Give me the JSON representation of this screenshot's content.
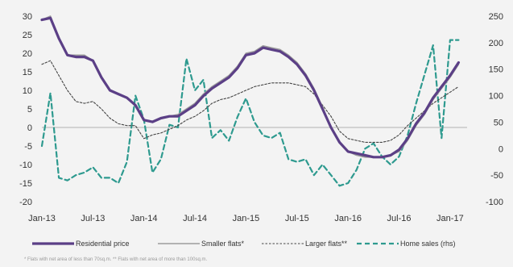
{
  "chart_data": {
    "type": "line",
    "title": "",
    "xlabel": "",
    "ylabel": "",
    "x_tick_labels": [
      "Jan-13",
      "Jul-13",
      "Jan-14",
      "Jul-14",
      "Jan-15",
      "Jul-15",
      "Jan-16",
      "Jul-16",
      "Jan-17"
    ],
    "x_tick_months": [
      0,
      6,
      12,
      18,
      24,
      30,
      36,
      42,
      48
    ],
    "ylim": [
      -20,
      30
    ],
    "y_ticks": [
      -20,
      -15,
      -10,
      -5,
      0,
      5,
      10,
      15,
      20,
      25,
      30
    ],
    "y2lim": [
      -100,
      250
    ],
    "y2_ticks": [
      -100,
      -50,
      0,
      50,
      100,
      150,
      200,
      250
    ],
    "grid": false,
    "legend_position": "bottom",
    "x_month_index": [
      0,
      1,
      2,
      3,
      4,
      5,
      6,
      7,
      8,
      9,
      10,
      11,
      12,
      13,
      14,
      15,
      16,
      17,
      18,
      19,
      20,
      21,
      22,
      23,
      24,
      25,
      26,
      27,
      28,
      29,
      30,
      31,
      32,
      33,
      34,
      35,
      36,
      37,
      38,
      39,
      40,
      41,
      42,
      43,
      44,
      45,
      46,
      47,
      48,
      49
    ],
    "series": [
      {
        "name": "Residential price",
        "axis": "left",
        "color": "#5b3f86",
        "style": "solid-thick",
        "values": [
          29,
          29.5,
          24,
          19.5,
          19,
          19,
          18,
          13.5,
          10,
          9,
          8,
          6,
          2,
          1.5,
          2.5,
          3,
          3,
          4.5,
          6,
          8.5,
          10.5,
          12,
          13.5,
          16,
          19.5,
          20,
          21.5,
          21,
          20.5,
          19,
          17,
          14,
          10,
          5,
          0,
          -4,
          -6.5,
          -7,
          -7.5,
          -8,
          -8,
          -7.5,
          -6,
          -3,
          1,
          4,
          8,
          11,
          14,
          17.5
        ]
      },
      {
        "name": "Smaller flats*",
        "axis": "left",
        "color": "#9c9c9c",
        "style": "solid",
        "values": [
          29,
          30,
          24,
          19.5,
          19.5,
          19.5,
          18,
          13.5,
          10,
          9,
          8,
          6,
          2,
          1.5,
          2.5,
          3,
          3.5,
          5,
          6.5,
          9,
          11,
          12.5,
          14,
          16.5,
          20,
          20.5,
          22,
          21.5,
          21,
          19.5,
          17.5,
          14.5,
          10.5,
          5.5,
          0,
          -4,
          -6.5,
          -7.5,
          -8,
          -8,
          -8,
          -7.5,
          -6.5,
          -3.5,
          0.5,
          3.5,
          7.5,
          10.5,
          13.5,
          17
        ]
      },
      {
        "name": "Larger flats**",
        "axis": "left",
        "color": "#444444",
        "style": "dashed-fine",
        "values": [
          17,
          18,
          14,
          10,
          7,
          6.5,
          7,
          5,
          2.5,
          1,
          0.5,
          0.5,
          -3,
          -2,
          -1.5,
          -0.5,
          0.5,
          2,
          3,
          4.5,
          6.5,
          7.5,
          8,
          9,
          10,
          11,
          11.5,
          12,
          12,
          12,
          11.5,
          11,
          9,
          6,
          3,
          -1,
          -3,
          -3.5,
          -4,
          -4,
          -4,
          -3.5,
          -2,
          0.5,
          2.5,
          4.5,
          6.5,
          8,
          9.5,
          11
        ]
      },
      {
        "name": "Home sales (rhs)",
        "axis": "right",
        "color": "#2e9a8f",
        "style": "dashed-bold",
        "values": [
          5,
          105,
          -55,
          -60,
          -50,
          -45,
          -35,
          -55,
          -55,
          -65,
          -25,
          100,
          55,
          -45,
          -20,
          45,
          40,
          170,
          110,
          130,
          20,
          35,
          15,
          60,
          95,
          50,
          25,
          20,
          30,
          -20,
          -25,
          -20,
          -50,
          -30,
          -50,
          -70,
          -65,
          -40,
          0,
          10,
          -15,
          -30,
          -15,
          25,
          85,
          140,
          195,
          20,
          205,
          205
        ]
      }
    ]
  },
  "footnote": "* Flats with net area of less than 70sq.m.   ** Flats with net area of more than 100sq.m."
}
